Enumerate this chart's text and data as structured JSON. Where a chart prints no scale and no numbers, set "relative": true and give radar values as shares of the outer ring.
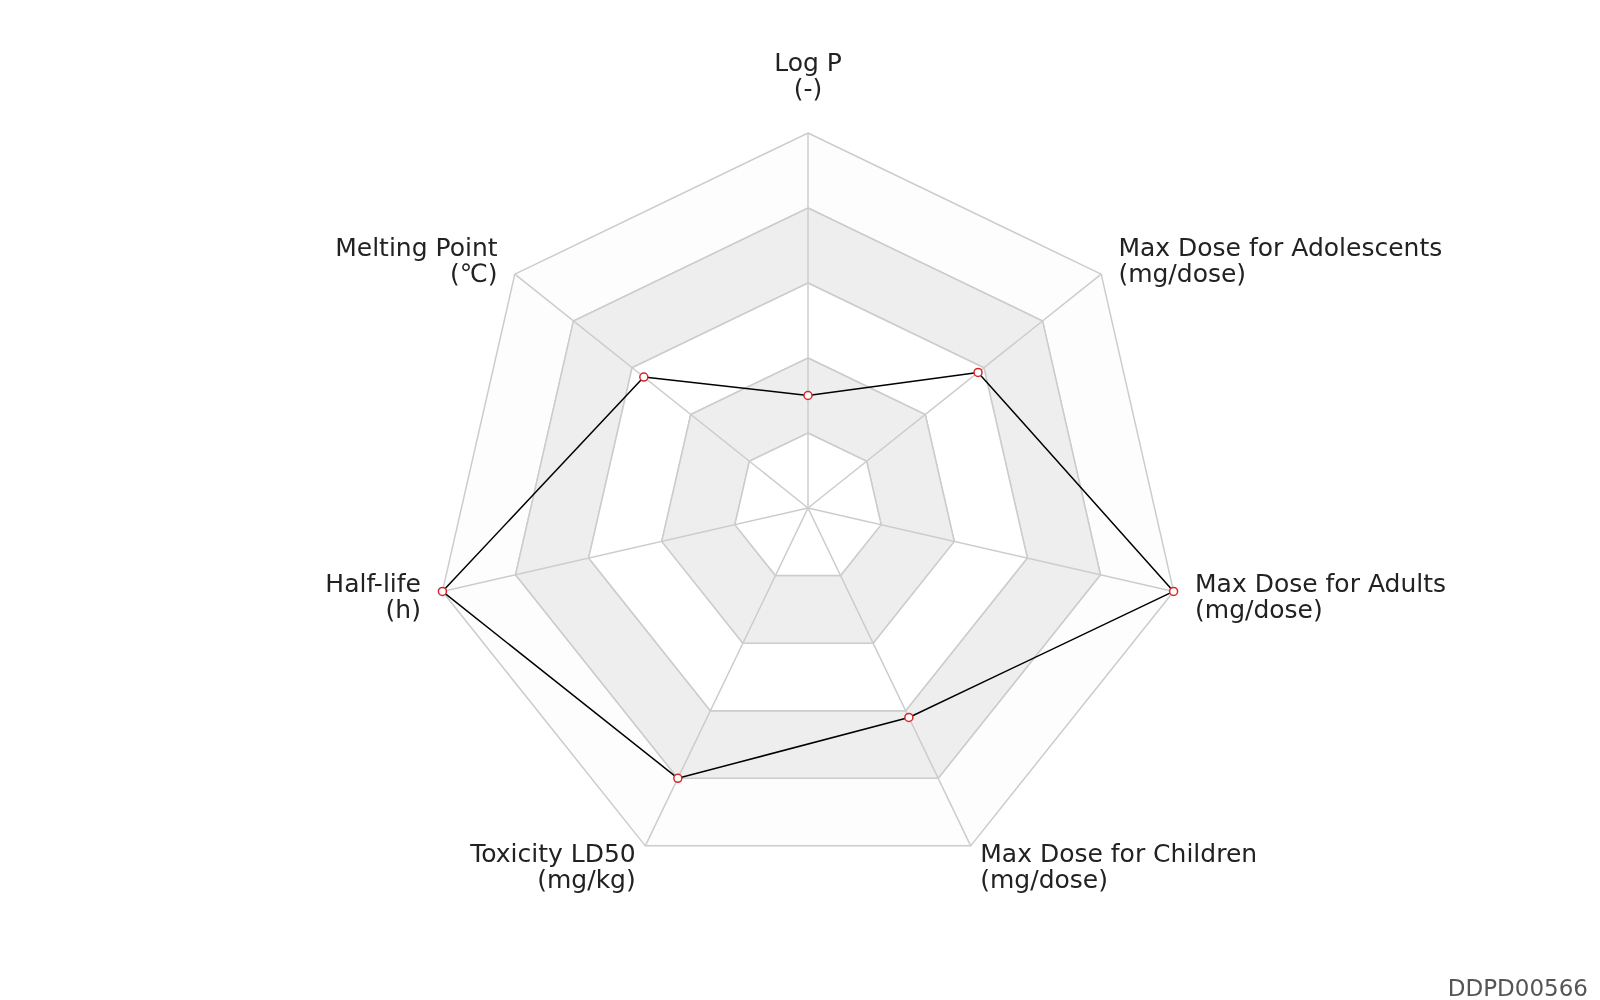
{
  "chart_data": {
    "type": "radar",
    "relative": true,
    "marker": "circle",
    "line_style": "solid",
    "categories": [
      "Log P\n(-)",
      "Max Dose for Adolescents\n(mg/dose)",
      "Max Dose for Adults\n(mg/dose)",
      "Max Dose for Children\n(mg/dose)",
      "Toxicity LD50\n(mg/kg)",
      "Half-life\n(h)",
      "Melting Point\n(℃)"
    ],
    "series": [
      {
        "color": "#000000",
        "values": [
          0.3,
          0.58,
          1,
          0.62,
          0.8,
          1,
          0.56
        ]
      }
    ],
    "annotations": [
      "DDPD00566"
    ]
  }
}
